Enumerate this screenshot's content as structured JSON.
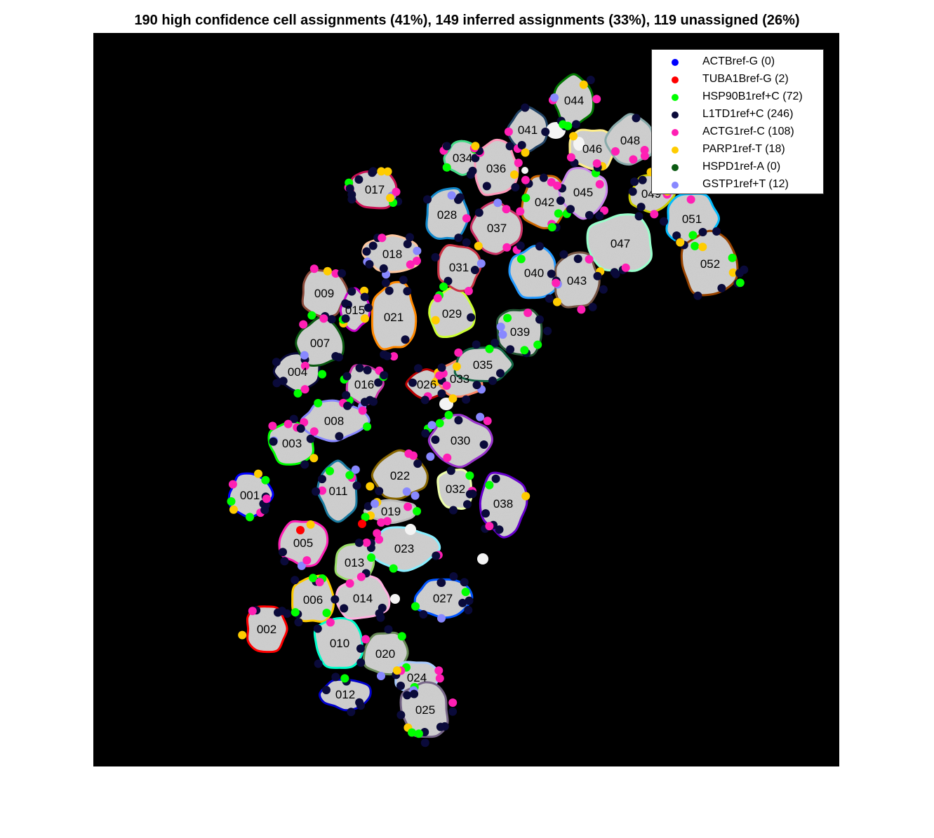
{
  "title": "190 high confidence cell assignments (41%), 149 inferred assignments (33%), 119 unassigned (26%)",
  "legend": [
    {
      "label": "ACTBref-G (0)",
      "color": "#0000ff"
    },
    {
      "label": "TUBA1Bref-G (2)",
      "color": "#ff0000"
    },
    {
      "label": "HSP90B1ref+C (72)",
      "color": "#00ff00"
    },
    {
      "label": "L1TD1ref+C (246)",
      "color": "#0a0a3a"
    },
    {
      "label": "ACTG1ref-C (108)",
      "color": "#ff1fb4"
    },
    {
      "label": "PARP1ref-T (18)",
      "color": "#ffcc00"
    },
    {
      "label": "HSPD1ref-A (0)",
      "color": "#0b5a12"
    },
    {
      "label": "GSTP1ref+T (12)",
      "color": "#8888ff"
    }
  ],
  "cells": [
    {
      "id": "001",
      "color": "#0000ff"
    },
    {
      "id": "002",
      "color": "#ff0000"
    },
    {
      "id": "003",
      "color": "#00ff00"
    },
    {
      "id": "004",
      "color": "#0a0a3a"
    },
    {
      "id": "005",
      "color": "#ff1fb4"
    },
    {
      "id": "006",
      "color": "#ffcc00"
    },
    {
      "id": "007",
      "color": "#0b5a12"
    },
    {
      "id": "008",
      "color": "#8888ff"
    },
    {
      "id": "009",
      "color": "#8b4a3a"
    },
    {
      "id": "010",
      "color": "#00ffcc"
    },
    {
      "id": "011",
      "color": "#1a7aa0"
    },
    {
      "id": "012",
      "color": "#0000cc"
    },
    {
      "id": "013",
      "color": "#99dd66"
    },
    {
      "id": "014",
      "color": "#ffb0e0"
    },
    {
      "id": "015",
      "color": "#cc00cc"
    },
    {
      "id": "016",
      "color": "#cc33aa"
    },
    {
      "id": "017",
      "color": "#cc1155"
    },
    {
      "id": "018",
      "color": "#ffc8a0"
    },
    {
      "id": "019",
      "color": "#bbbbbb"
    },
    {
      "id": "020",
      "color": "#668855"
    },
    {
      "id": "021",
      "color": "#ff8800"
    },
    {
      "id": "022",
      "color": "#886600"
    },
    {
      "id": "023",
      "color": "#88eeff"
    },
    {
      "id": "024",
      "color": "#aaccff"
    },
    {
      "id": "025",
      "color": "#776688"
    },
    {
      "id": "026",
      "color": "#bb0000"
    },
    {
      "id": "027",
      "color": "#0055ff"
    },
    {
      "id": "028",
      "color": "#1188cc"
    },
    {
      "id": "029",
      "color": "#ccff33"
    },
    {
      "id": "030",
      "color": "#9933cc"
    },
    {
      "id": "031",
      "color": "#cc3344"
    },
    {
      "id": "032",
      "color": "#eeffaa"
    },
    {
      "id": "033",
      "color": "#ff8866"
    },
    {
      "id": "034",
      "color": "#44dd88"
    },
    {
      "id": "035",
      "color": "#116644"
    },
    {
      "id": "036",
      "color": "#ff99bb"
    },
    {
      "id": "037",
      "color": "#cc3366"
    },
    {
      "id": "038",
      "color": "#6600cc"
    },
    {
      "id": "039",
      "color": "#225533"
    },
    {
      "id": "040",
      "color": "#2299ff"
    },
    {
      "id": "041",
      "color": "#224466"
    },
    {
      "id": "042",
      "color": "#cc6600"
    },
    {
      "id": "043",
      "color": "#775544"
    },
    {
      "id": "044",
      "color": "#007700"
    },
    {
      "id": "045",
      "color": "#cc88ee"
    },
    {
      "id": "046",
      "color": "#ffee88"
    },
    {
      "id": "047",
      "color": "#99ffcc"
    },
    {
      "id": "048",
      "color": "#88aaaa"
    },
    {
      "id": "049",
      "color": "#cccc00"
    },
    {
      "id": "051",
      "color": "#00bbff"
    },
    {
      "id": "052",
      "color": "#994400"
    }
  ]
}
